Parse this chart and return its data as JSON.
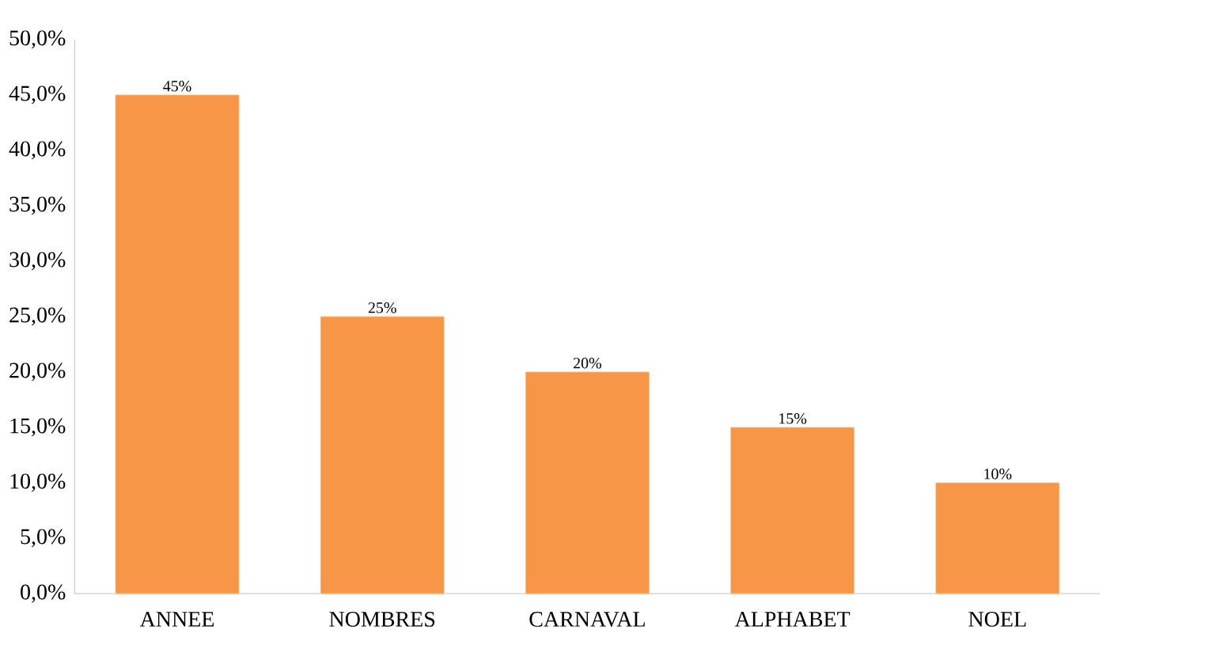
{
  "chart_data": {
    "type": "bar",
    "categories": [
      "ANNEE",
      "NOMBRES",
      "CARNAVAL",
      "ALPHABET",
      "NOEL"
    ],
    "values": [
      45,
      25,
      20,
      15,
      10
    ],
    "color": "#f79646",
    "value_labels": [
      "45%",
      "25%",
      "20%",
      "15%",
      "10%"
    ],
    "ylim": [
      0,
      50
    ],
    "yticks": [
      {
        "value": 0,
        "label": "0,0%"
      },
      {
        "value": 5,
        "label": "5,0%"
      },
      {
        "value": 10,
        "label": "10,0%"
      },
      {
        "value": 15,
        "label": "15,0%"
      },
      {
        "value": 20,
        "label": "20,0%"
      },
      {
        "value": 25,
        "label": "25,0%"
      },
      {
        "value": 30,
        "label": "30,0%"
      },
      {
        "value": 35,
        "label": "35,0%"
      },
      {
        "value": 40,
        "label": "40,0%"
      },
      {
        "value": 45,
        "label": "45,0%"
      },
      {
        "value": 50,
        "label": "50,0%"
      }
    ]
  }
}
